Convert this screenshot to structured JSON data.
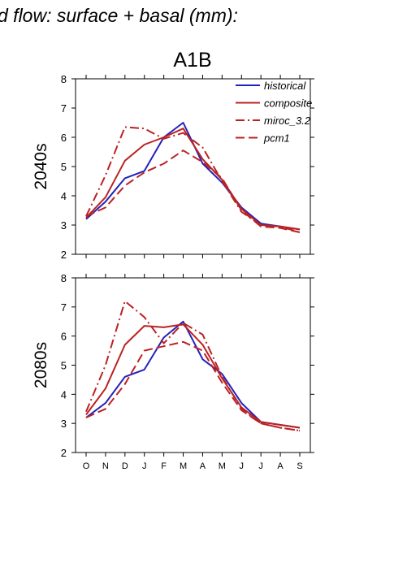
{
  "header": {
    "title": "d flow: surface + basal (mm):",
    "subtitle": "A1B"
  },
  "colors": {
    "historical": "#2222bb",
    "composite": "#bb2222",
    "miroc_3.2": "#bb2222",
    "pcm1": "#bb2222",
    "axis": "#000000"
  },
  "chart_data": [
    {
      "type": "line",
      "panel_label": "2040s",
      "ylabel": "2040s",
      "ylim": [
        2,
        8
      ],
      "yticks": [
        "2",
        "3",
        "4",
        "5",
        "6",
        "7",
        "8"
      ],
      "categories": [
        "O",
        "N",
        "D",
        "J",
        "F",
        "M",
        "A",
        "M",
        "J",
        "J",
        "A",
        "S"
      ],
      "grid": false,
      "legend_position": "top-right",
      "series": [
        {
          "name": "historical",
          "style": "solid",
          "values": [
            3.2,
            3.8,
            4.6,
            4.85,
            6.0,
            6.5,
            5.1,
            4.45,
            3.6,
            3.05,
            2.95,
            2.85
          ]
        },
        {
          "name": "composite",
          "style": "solid",
          "values": [
            3.25,
            3.95,
            5.2,
            5.75,
            6.0,
            6.3,
            5.25,
            4.55,
            3.55,
            3.0,
            2.95,
            2.85
          ]
        },
        {
          "name": "miroc_3.2",
          "style": "dashdot",
          "values": [
            3.3,
            4.7,
            6.35,
            6.3,
            5.95,
            6.15,
            5.65,
            4.5,
            3.45,
            3.0,
            2.95,
            2.75
          ]
        },
        {
          "name": "pcm1",
          "style": "dashed",
          "values": [
            3.3,
            3.6,
            4.35,
            4.8,
            5.1,
            5.55,
            5.15,
            4.6,
            3.5,
            2.95,
            2.9,
            2.75
          ]
        }
      ]
    },
    {
      "type": "line",
      "panel_label": "2080s",
      "ylabel": "2080s",
      "ylim": [
        2,
        8
      ],
      "yticks": [
        "2",
        "3",
        "4",
        "5",
        "6",
        "7",
        "8"
      ],
      "categories": [
        "O",
        "N",
        "D",
        "J",
        "F",
        "M",
        "A",
        "M",
        "J",
        "J",
        "A",
        "S"
      ],
      "grid": false,
      "series": [
        {
          "name": "historical",
          "style": "solid",
          "values": [
            3.2,
            3.7,
            4.6,
            4.85,
            5.95,
            6.5,
            5.2,
            4.7,
            3.7,
            3.05,
            2.95,
            2.85
          ]
        },
        {
          "name": "composite",
          "style": "solid",
          "values": [
            3.3,
            4.2,
            5.7,
            6.35,
            6.3,
            6.4,
            5.7,
            4.55,
            3.55,
            3.05,
            2.95,
            2.85
          ]
        },
        {
          "name": "miroc_3.2",
          "style": "dashdot",
          "values": [
            3.4,
            5.0,
            7.2,
            6.65,
            5.75,
            6.45,
            6.05,
            4.6,
            3.5,
            3.0,
            2.85,
            2.75
          ]
        },
        {
          "name": "pcm1",
          "style": "dashed",
          "values": [
            3.2,
            3.5,
            4.35,
            5.5,
            5.65,
            5.8,
            5.5,
            4.4,
            3.45,
            3.0,
            2.85,
            2.75
          ]
        }
      ]
    }
  ]
}
